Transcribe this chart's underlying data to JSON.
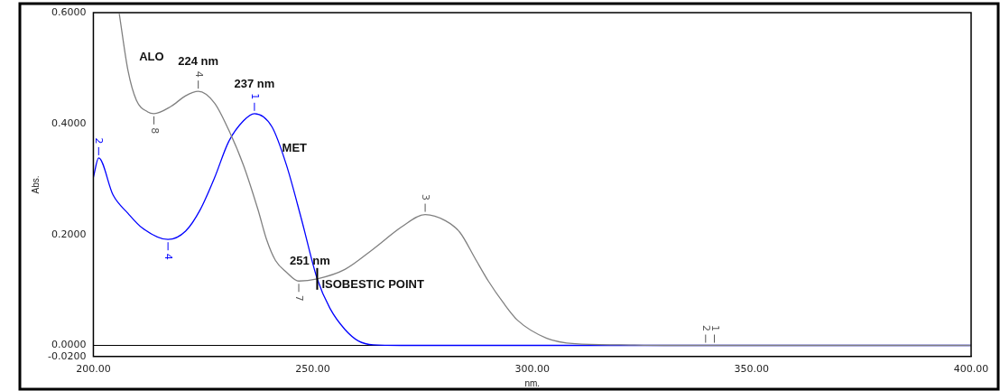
{
  "chart_data": {
    "type": "line",
    "xlabel": "nm.",
    "ylabel": "Abs.",
    "xlim": [
      200,
      400
    ],
    "xticks": [
      {
        "value": 200,
        "label": "200.00"
      },
      {
        "value": 250,
        "label": "250.00"
      },
      {
        "value": 300,
        "label": "300.00"
      },
      {
        "value": 350,
        "label": "350.00"
      },
      {
        "value": 400,
        "label": "400.00"
      }
    ],
    "ylim": [
      -0.02,
      0.6
    ],
    "yticks": [
      {
        "value": -0.02,
        "label": "-0.0200"
      },
      {
        "value": 0,
        "label": "0.0000"
      },
      {
        "value": 0.2,
        "label": "0.2000"
      },
      {
        "value": 0.4,
        "label": "0.4000"
      },
      {
        "value": 0.6,
        "label": "0.6000"
      }
    ],
    "grid": false,
    "legend": false,
    "marker": "none",
    "line_style": "solid",
    "ref_lines": [
      {
        "axis": "y",
        "value": 0,
        "color": "#000000"
      }
    ],
    "series": [
      {
        "color": "#808080",
        "x": [
          205.9,
          207.9,
          209.8,
          212.4,
          213.8,
          217.7,
          221,
          223.9,
          227.6,
          230.8,
          234.2,
          237.5,
          239.5,
          241.5,
          244,
          246.8,
          251,
          257.3,
          263.8,
          270.3,
          275.6,
          280.2,
          283.5,
          286.9,
          290,
          293.4,
          296.7,
          303.3,
          309.8,
          320,
          330,
          400
        ],
        "values": [
          0.598,
          0.495,
          0.442,
          0.421,
          0.418,
          0.431,
          0.45,
          0.458,
          0.437,
          0.389,
          0.325,
          0.245,
          0.19,
          0.153,
          0.132,
          0.116,
          0.12,
          0.137,
          0.174,
          0.214,
          0.236,
          0.225,
          0.204,
          0.158,
          0.116,
          0.077,
          0.045,
          0.013,
          0.003,
          0.001,
          0,
          0
        ]
      },
      {
        "color": "#0000ff",
        "x": [
          200,
          201.2,
          204.5,
          207.9,
          211.1,
          217,
          221,
          224.3,
          227.6,
          230.8,
          234.2,
          236.7,
          240.7,
          244,
          247.4,
          251,
          253.9,
          257.3,
          260.4,
          263.8,
          270,
          400
        ],
        "values": [
          0.303,
          0.338,
          0.271,
          0.238,
          0.212,
          0.191,
          0.206,
          0.244,
          0.302,
          0.367,
          0.405,
          0.418,
          0.394,
          0.325,
          0.228,
          0.12,
          0.067,
          0.029,
          0.008,
          0.001,
          0,
          0
        ]
      }
    ],
    "annotations": [
      "ALO",
      {
        "text": "MET",
        "x": 243,
        "y": 0.35
      },
      {
        "text": "224 nm",
        "x": 223.9,
        "y": 0.458
      },
      {
        "text": "237 nm",
        "x": 236.7,
        "y": 0.418
      },
      {
        "text": "251 nm",
        "x": 251,
        "y": 0.12
      },
      {
        "text": "ISOBESTIC POINT",
        "x": 251,
        "y": 0.12
      },
      {
        "text": "8",
        "x": 213.8,
        "y": 0.418
      },
      {
        "text": "4",
        "x": 223.9,
        "y": 0.458
      },
      {
        "text": "7",
        "x": 246.8,
        "y": 0.116
      },
      {
        "text": "3",
        "x": 275.6,
        "y": 0.236
      },
      {
        "text": "2",
        "x": 339.5,
        "y": 0
      },
      {
        "text": "1",
        "x": 341.5,
        "y": 0
      },
      {
        "text": "1",
        "x": 236.7,
        "y": 0.418
      },
      {
        "text": "2",
        "x": 201.2,
        "y": 0.338
      },
      {
        "text": "4",
        "x": 217,
        "y": 0.191
      }
    ]
  }
}
